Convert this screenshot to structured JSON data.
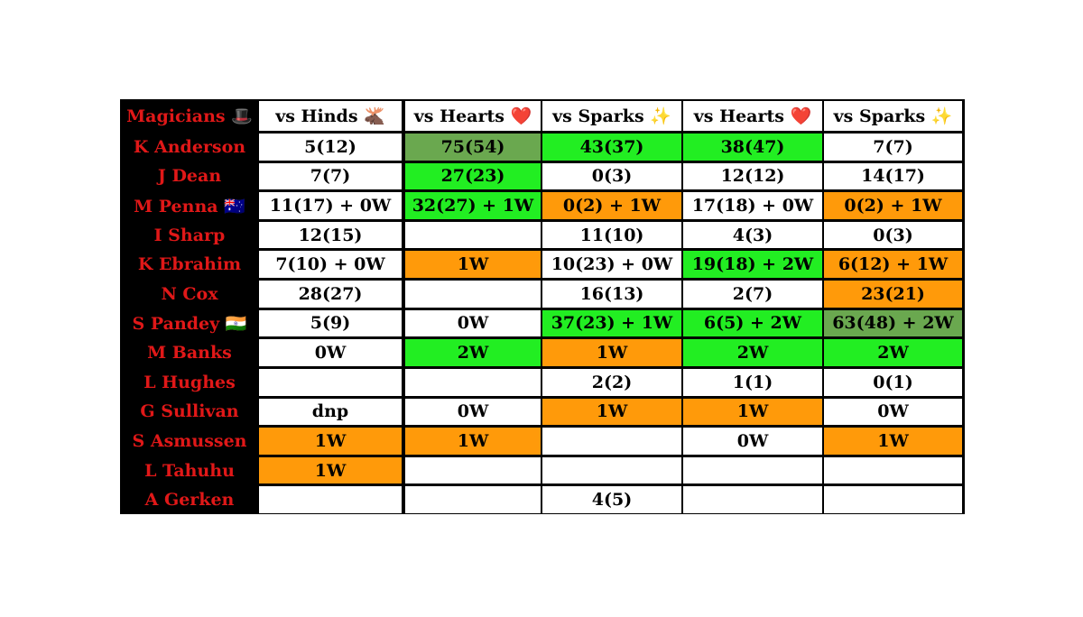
{
  "table": {
    "header": [
      "Magicians 🎩",
      "vs Hinds 🫎",
      "vs Hearts ❤️",
      "vs Sparks ✨",
      "vs Hearts ❤️",
      "vs Sparks ✨"
    ],
    "rows": [
      {
        "name": "K Anderson",
        "cells": [
          "5(12)",
          "75(54)",
          "43(37)",
          "38(47)",
          "7(7)"
        ],
        "colors": [
          null,
          "#6aa84f",
          "#22ee22",
          "#22ee22",
          null
        ]
      },
      {
        "name": "J Dean",
        "cells": [
          "7(7)",
          "27(23)",
          "0(3)",
          "12(12)",
          "14(17)"
        ],
        "colors": [
          null,
          "#22ee22",
          null,
          null,
          null
        ]
      },
      {
        "name": "M Penna 🇦🇺",
        "cells": [
          "11(17) + 0W",
          "32(27) + 1W",
          "0(2) + 1W",
          "17(18) + 0W",
          "0(2) + 1W"
        ],
        "colors": [
          null,
          "#22ee22",
          "#ff9a0a",
          null,
          "#ff9a0a"
        ]
      },
      {
        "name": "I Sharp",
        "cells": [
          "12(15)",
          null,
          "11(10)",
          "4(3)",
          "0(3)"
        ],
        "colors": [
          null,
          null,
          null,
          null,
          null
        ]
      },
      {
        "name": "K Ebrahim",
        "cells": [
          "7(10) + 0W",
          "1W",
          "10(23) + 0W",
          "19(18) + 2W",
          "6(12) + 1W"
        ],
        "colors": [
          null,
          "#ff9a0a",
          null,
          "#22ee22",
          "#ff9a0a"
        ]
      },
      {
        "name": "N Cox",
        "cells": [
          "28(27)",
          null,
          "16(13)",
          "2(7)",
          "23(21)"
        ],
        "colors": [
          null,
          null,
          null,
          null,
          "#ff9a0a"
        ]
      },
      {
        "name": "S Pandey 🇮🇳",
        "cells": [
          "5(9)",
          "0W",
          "37(23) + 1W",
          "6(5) + 2W",
          "63(48) + 2W"
        ],
        "colors": [
          null,
          null,
          "#22ee22",
          "#22ee22",
          "#6aa84f"
        ]
      },
      {
        "name": "M Banks",
        "cells": [
          "0W",
          "2W",
          "1W",
          "2W",
          "2W"
        ],
        "colors": [
          null,
          "#22ee22",
          "#ff9a0a",
          "#22ee22",
          "#22ee22"
        ]
      },
      {
        "name": "L Hughes",
        "cells": [
          null,
          null,
          "2(2)",
          "1(1)",
          "0(1)"
        ],
        "colors": [
          null,
          null,
          null,
          null,
          null
        ]
      },
      {
        "name": "G Sullivan",
        "cells": [
          "dnp",
          "0W",
          "1W",
          "1W",
          "0W"
        ],
        "colors": [
          null,
          null,
          "#ff9a0a",
          "#ff9a0a",
          null
        ]
      },
      {
        "name": "S Asmussen",
        "cells": [
          "1W",
          "1W",
          null,
          "0W",
          "1W"
        ],
        "colors": [
          "#ff9a0a",
          "#ff9a0a",
          null,
          null,
          "#ff9a0a"
        ]
      },
      {
        "name": "L Tahuhu",
        "cells": [
          "1W",
          null,
          null,
          null,
          null
        ],
        "colors": [
          "#ff9a0a",
          null,
          null,
          null,
          null
        ]
      },
      {
        "name": "A Gerken",
        "cells": [
          null,
          null,
          "4(5)",
          null,
          null
        ],
        "colors": [
          null,
          null,
          null,
          null,
          null
        ]
      }
    ]
  }
}
